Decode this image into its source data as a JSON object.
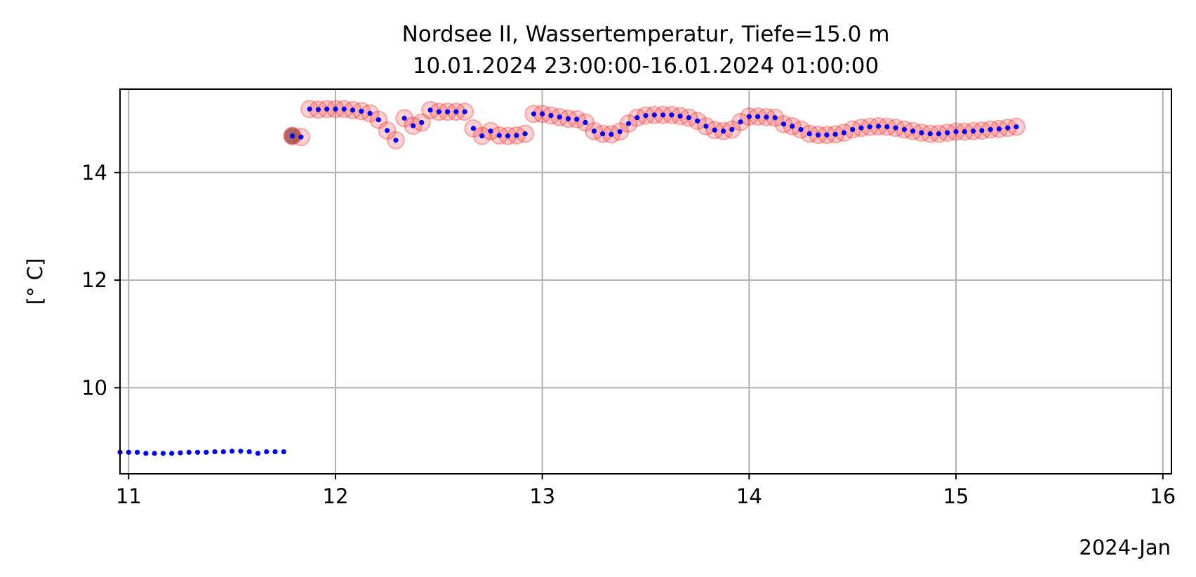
{
  "chart_data": {
    "type": "scatter",
    "title_line1": "Nordsee II, Wassertemperatur, Tiefe=15.0 m",
    "title_line2": "10.01.2024 23:00:00-16.01.2024 01:00:00",
    "xlabel": "",
    "x_offset_label": "2024-Jan",
    "ylabel": "[° C]",
    "xlim": [
      "2024-01-10 23:00",
      "2024-01-16 01:00"
    ],
    "ylim": [
      8.4,
      15.55
    ],
    "x_ticks": [
      {
        "value": "2024-01-11 00:00",
        "label": "11"
      },
      {
        "value": "2024-01-12 00:00",
        "label": "12"
      },
      {
        "value": "2024-01-13 00:00",
        "label": "13"
      },
      {
        "value": "2024-01-14 00:00",
        "label": "14"
      },
      {
        "value": "2024-01-15 00:00",
        "label": "15"
      },
      {
        "value": "2024-01-16 00:00",
        "label": "16"
      }
    ],
    "y_ticks": [
      {
        "value": 10,
        "label": "10"
      },
      {
        "value": 12,
        "label": "12"
      },
      {
        "value": 14,
        "label": "14"
      }
    ],
    "grid": true,
    "colors": {
      "points": "#0000ff",
      "highlight_fill": "#ff0000",
      "highlight_alpha": 0.18,
      "marker_fill": "#8b3a3a",
      "grid": "#b0b0b0"
    },
    "series": [
      {
        "values": [
          [
            "2024-01-10 23:00",
            8.8
          ],
          [
            "2024-01-11 00:00",
            8.8
          ],
          [
            "2024-01-11 01:00",
            8.8
          ],
          [
            "2024-01-11 02:00",
            8.78
          ],
          [
            "2024-01-11 03:00",
            8.78
          ],
          [
            "2024-01-11 04:00",
            8.78
          ],
          [
            "2024-01-11 05:00",
            8.78
          ],
          [
            "2024-01-11 06:00",
            8.79
          ],
          [
            "2024-01-11 07:00",
            8.8
          ],
          [
            "2024-01-11 08:00",
            8.8
          ],
          [
            "2024-01-11 09:00",
            8.8
          ],
          [
            "2024-01-11 10:00",
            8.81
          ],
          [
            "2024-01-11 11:00",
            8.81
          ],
          [
            "2024-01-11 12:00",
            8.82
          ],
          [
            "2024-01-11 13:00",
            8.82
          ],
          [
            "2024-01-11 14:00",
            8.81
          ],
          [
            "2024-01-11 15:00",
            8.78
          ],
          [
            "2024-01-11 16:00",
            8.81
          ],
          [
            "2024-01-11 17:00",
            8.81
          ],
          [
            "2024-01-11 18:00",
            8.81
          ],
          [
            "2024-01-11 19:00",
            14.68
          ],
          [
            "2024-01-11 20:00",
            14.66
          ],
          [
            "2024-01-11 21:00",
            15.18
          ],
          [
            "2024-01-11 22:00",
            15.17
          ],
          [
            "2024-01-11 23:00",
            15.18
          ],
          [
            "2024-01-12 00:00",
            15.18
          ],
          [
            "2024-01-12 01:00",
            15.18
          ],
          [
            "2024-01-12 02:00",
            15.16
          ],
          [
            "2024-01-12 03:00",
            15.14
          ],
          [
            "2024-01-12 04:00",
            15.1
          ],
          [
            "2024-01-12 05:00",
            14.98
          ],
          [
            "2024-01-12 06:00",
            14.78
          ],
          [
            "2024-01-12 07:00",
            14.6
          ],
          [
            "2024-01-12 08:00",
            15.01
          ],
          [
            "2024-01-12 09:00",
            14.87
          ],
          [
            "2024-01-12 10:00",
            14.93
          ],
          [
            "2024-01-12 11:00",
            15.16
          ],
          [
            "2024-01-12 12:00",
            15.13
          ],
          [
            "2024-01-12 13:00",
            15.13
          ],
          [
            "2024-01-12 14:00",
            15.13
          ],
          [
            "2024-01-12 15:00",
            15.13
          ],
          [
            "2024-01-12 16:00",
            14.82
          ],
          [
            "2024-01-12 17:00",
            14.68
          ],
          [
            "2024-01-12 18:00",
            14.77
          ],
          [
            "2024-01-12 19:00",
            14.69
          ],
          [
            "2024-01-12 20:00",
            14.68
          ],
          [
            "2024-01-12 21:00",
            14.69
          ],
          [
            "2024-01-12 22:00",
            14.72
          ],
          [
            "2024-01-12 23:00",
            15.09
          ],
          [
            "2024-01-13 00:00",
            15.09
          ],
          [
            "2024-01-13 01:00",
            15.06
          ],
          [
            "2024-01-13 02:00",
            15.03
          ],
          [
            "2024-01-13 03:00",
            15.0
          ],
          [
            "2024-01-13 04:00",
            14.99
          ],
          [
            "2024-01-13 05:00",
            14.93
          ],
          [
            "2024-01-13 06:00",
            14.77
          ],
          [
            "2024-01-13 07:00",
            14.72
          ],
          [
            "2024-01-13 08:00",
            14.71
          ],
          [
            "2024-01-13 09:00",
            14.76
          ],
          [
            "2024-01-13 10:00",
            14.91
          ],
          [
            "2024-01-13 11:00",
            15.02
          ],
          [
            "2024-01-13 12:00",
            15.06
          ],
          [
            "2024-01-13 13:00",
            15.07
          ],
          [
            "2024-01-13 14:00",
            15.07
          ],
          [
            "2024-01-13 15:00",
            15.07
          ],
          [
            "2024-01-13 16:00",
            15.05
          ],
          [
            "2024-01-13 17:00",
            15.02
          ],
          [
            "2024-01-13 18:00",
            14.96
          ],
          [
            "2024-01-13 19:00",
            14.86
          ],
          [
            "2024-01-13 20:00",
            14.79
          ],
          [
            "2024-01-13 21:00",
            14.77
          ],
          [
            "2024-01-13 22:00",
            14.8
          ],
          [
            "2024-01-13 23:00",
            14.94
          ],
          [
            "2024-01-14 00:00",
            15.04
          ],
          [
            "2024-01-14 01:00",
            15.04
          ],
          [
            "2024-01-14 02:00",
            15.03
          ],
          [
            "2024-01-14 03:00",
            15.02
          ],
          [
            "2024-01-14 04:00",
            14.9
          ],
          [
            "2024-01-14 05:00",
            14.86
          ],
          [
            "2024-01-14 06:00",
            14.8
          ],
          [
            "2024-01-14 07:00",
            14.72
          ],
          [
            "2024-01-14 08:00",
            14.7
          ],
          [
            "2024-01-14 09:00",
            14.7
          ],
          [
            "2024-01-14 10:00",
            14.71
          ],
          [
            "2024-01-14 11:00",
            14.74
          ],
          [
            "2024-01-14 12:00",
            14.8
          ],
          [
            "2024-01-14 13:00",
            14.83
          ],
          [
            "2024-01-14 14:00",
            14.85
          ],
          [
            "2024-01-14 15:00",
            14.86
          ],
          [
            "2024-01-14 16:00",
            14.85
          ],
          [
            "2024-01-14 17:00",
            14.83
          ],
          [
            "2024-01-14 18:00",
            14.8
          ],
          [
            "2024-01-14 19:00",
            14.77
          ],
          [
            "2024-01-14 20:00",
            14.74
          ],
          [
            "2024-01-14 21:00",
            14.72
          ],
          [
            "2024-01-14 22:00",
            14.72
          ],
          [
            "2024-01-14 23:00",
            14.74
          ],
          [
            "2024-01-15 00:00",
            14.76
          ],
          [
            "2024-01-15 01:00",
            14.76
          ],
          [
            "2024-01-15 02:00",
            14.77
          ],
          [
            "2024-01-15 03:00",
            14.78
          ],
          [
            "2024-01-15 04:00",
            14.8
          ],
          [
            "2024-01-15 05:00",
            14.81
          ],
          [
            "2024-01-15 06:00",
            14.83
          ],
          [
            "2024-01-15 07:00",
            14.85
          ]
        ],
        "color": "#0000ff"
      }
    ],
    "highlighted_range": [
      "2024-01-11 19:00",
      "2024-01-15 07:00"
    ],
    "marked_point": [
      "2024-01-11 19:00",
      14.68
    ]
  }
}
